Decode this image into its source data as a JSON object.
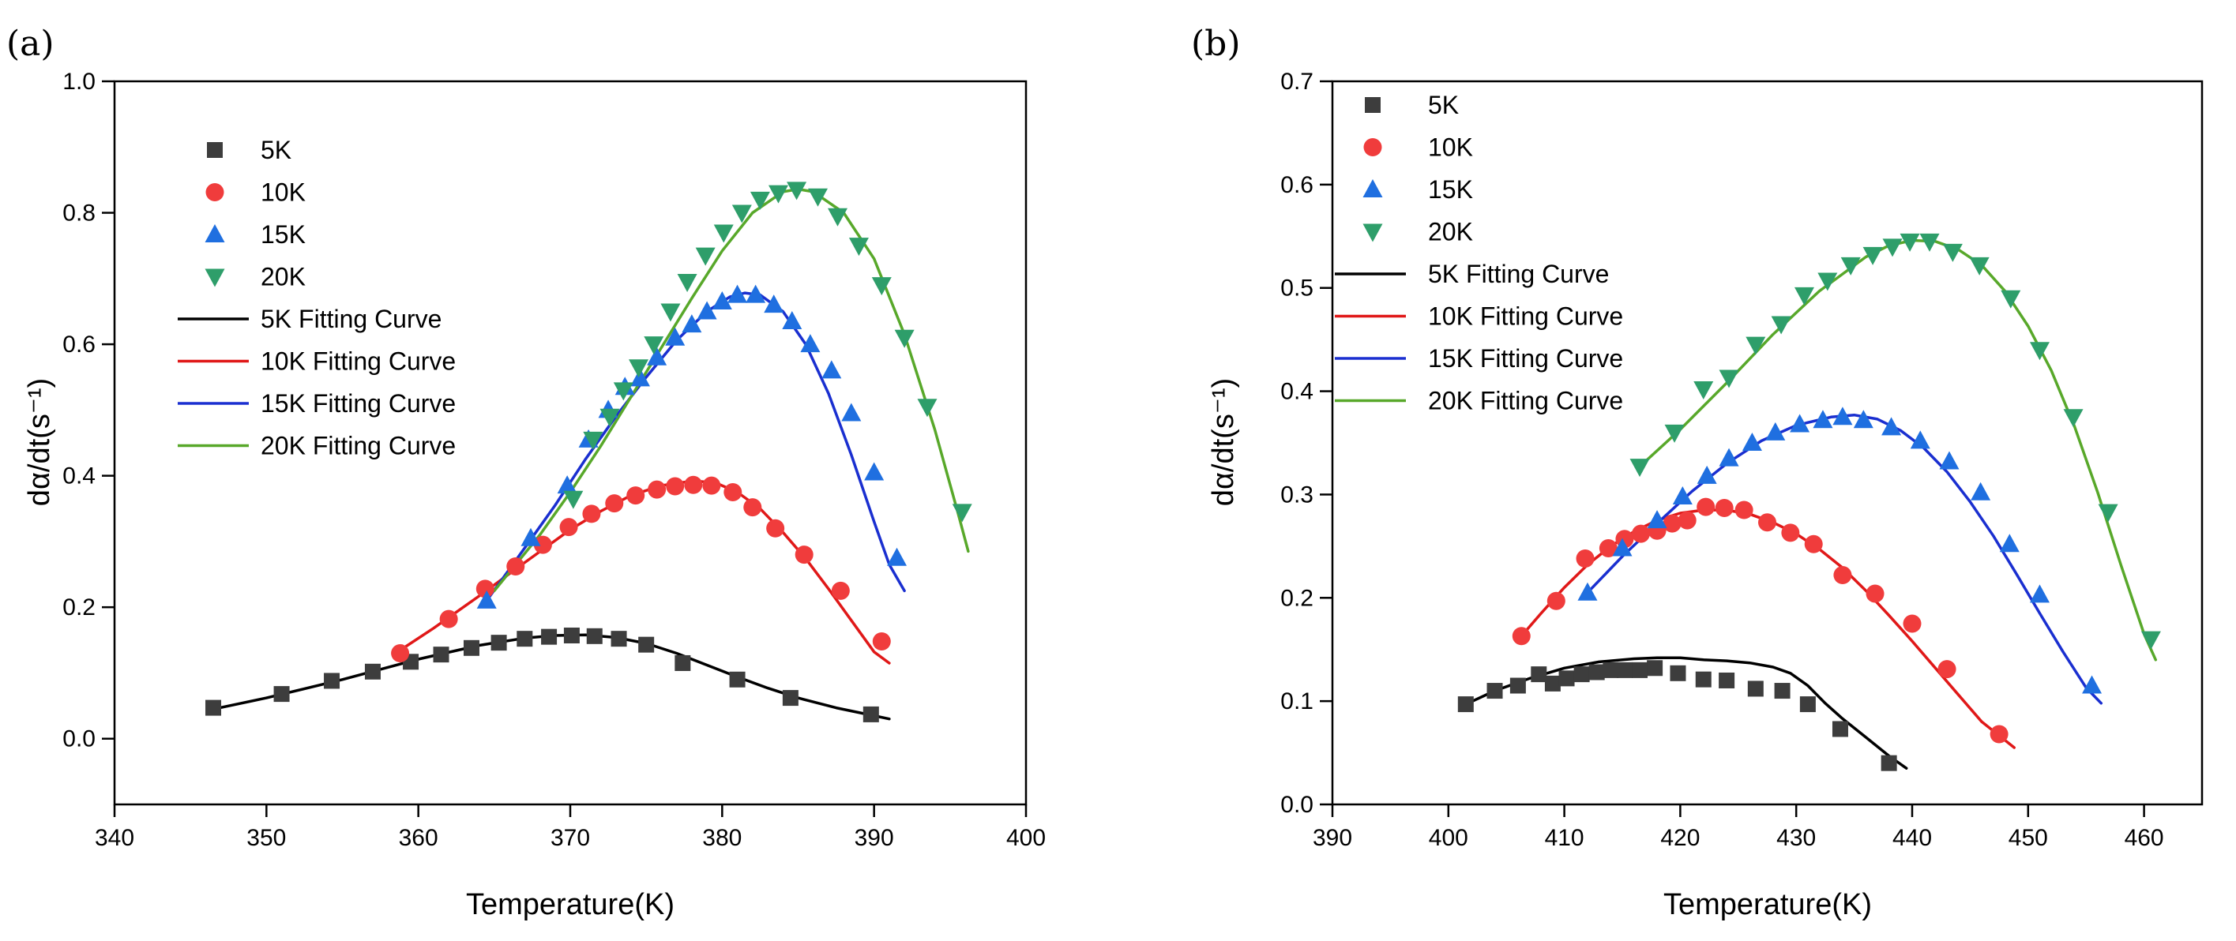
{
  "colors": {
    "5K": "#3d3d3d",
    "10K": "#f03c3c",
    "15K": "#1f6fe0",
    "20K": "#2e9e6a",
    "fit_5K": "#000000",
    "fit_10K": "#e01818",
    "fit_15K": "#1a2fd0",
    "fit_20K": "#58a82a"
  },
  "chart_data": [
    {
      "type": "scatter",
      "panel": "(a)",
      "xlabel": "Temperature(K)",
      "ylabel": "dα/dt(s⁻¹)",
      "xlim": [
        340,
        400
      ],
      "ylim": [
        -0.1,
        1.0
      ],
      "xticks": [
        340,
        350,
        360,
        370,
        380,
        390,
        400
      ],
      "yticks": [
        0.0,
        0.2,
        0.4,
        0.6,
        0.8,
        1.0
      ],
      "xtick_labels": [
        "340",
        "350",
        "360",
        "370",
        "380",
        "390",
        "400"
      ],
      "ytick_labels": [
        "0.0",
        "0.2",
        "0.4",
        "0.6",
        "0.8",
        "1.0"
      ],
      "legend_position": "top-left",
      "series": [
        {
          "name": "5K",
          "marker": "square",
          "color_key": "5K",
          "x": [
            346.5,
            351.0,
            354.3,
            357.0,
            359.5,
            361.5,
            363.5,
            365.3,
            367.0,
            368.6,
            370.1,
            371.6,
            373.2,
            375.0,
            377.4,
            381.0,
            384.5,
            389.8
          ],
          "y": [
            0.047,
            0.068,
            0.088,
            0.102,
            0.117,
            0.128,
            0.138,
            0.146,
            0.152,
            0.155,
            0.157,
            0.156,
            0.152,
            0.143,
            0.115,
            0.09,
            0.062,
            0.037
          ]
        },
        {
          "name": "10K",
          "marker": "circle",
          "color_key": "10K",
          "x": [
            358.8,
            362.0,
            364.4,
            366.4,
            368.2,
            369.9,
            371.4,
            372.9,
            374.3,
            375.7,
            376.9,
            378.1,
            379.3,
            380.7,
            382.0,
            383.5,
            385.4,
            387.8,
            390.5
          ],
          "y": [
            0.13,
            0.182,
            0.228,
            0.262,
            0.295,
            0.322,
            0.342,
            0.358,
            0.37,
            0.379,
            0.384,
            0.386,
            0.385,
            0.375,
            0.352,
            0.32,
            0.28,
            0.225,
            0.148
          ]
        },
        {
          "name": "15K",
          "marker": "triangle-up",
          "color_key": "15K",
          "x": [
            364.5,
            367.4,
            369.8,
            371.2,
            372.5,
            373.6,
            374.6,
            375.7,
            376.9,
            378.0,
            379.0,
            380.0,
            381.0,
            382.2,
            383.4,
            384.6,
            385.8,
            387.2,
            388.5,
            390.0,
            391.5
          ],
          "y": [
            0.21,
            0.305,
            0.385,
            0.455,
            0.5,
            0.535,
            0.548,
            0.58,
            0.61,
            0.63,
            0.65,
            0.665,
            0.675,
            0.675,
            0.66,
            0.635,
            0.6,
            0.56,
            0.495,
            0.405,
            0.275
          ]
        },
        {
          "name": "20K",
          "marker": "triangle-down",
          "color_key": "20K",
          "x": [
            370.2,
            371.5,
            372.6,
            373.5,
            374.5,
            375.5,
            376.6,
            377.7,
            378.9,
            380.1,
            381.3,
            382.5,
            383.7,
            384.9,
            386.3,
            387.6,
            389.0,
            390.5,
            392.0,
            393.5,
            395.8
          ],
          "y": [
            0.365,
            0.455,
            0.49,
            0.53,
            0.565,
            0.6,
            0.65,
            0.695,
            0.735,
            0.77,
            0.8,
            0.82,
            0.83,
            0.835,
            0.825,
            0.795,
            0.75,
            0.69,
            0.61,
            0.505,
            0.345
          ]
        },
        {
          "name": "5K Fitting Curve",
          "marker": "line",
          "color_key": "fit_5K",
          "x": [
            346.5,
            350.0,
            355.0,
            360.0,
            364.0,
            367.0,
            369.0,
            371.0,
            373.0,
            375.0,
            377.0,
            379.0,
            381.0,
            383.0,
            385.0,
            387.5,
            390.0,
            391.0
          ],
          "y": [
            0.045,
            0.062,
            0.09,
            0.121,
            0.142,
            0.153,
            0.157,
            0.158,
            0.154,
            0.145,
            0.13,
            0.112,
            0.094,
            0.077,
            0.062,
            0.047,
            0.035,
            0.03
          ]
        },
        {
          "name": "10K Fitting Curve",
          "marker": "line",
          "color_key": "fit_10K",
          "x": [
            358.5,
            361.0,
            364.0,
            367.0,
            370.0,
            372.0,
            374.0,
            376.0,
            378.0,
            379.5,
            381.0,
            382.5,
            384.0,
            385.5,
            387.0,
            388.5,
            390.0,
            391.0
          ],
          "y": [
            0.13,
            0.168,
            0.217,
            0.268,
            0.318,
            0.346,
            0.37,
            0.385,
            0.392,
            0.39,
            0.375,
            0.35,
            0.314,
            0.274,
            0.228,
            0.18,
            0.132,
            0.115
          ]
        },
        {
          "name": "15K Fitting Curve",
          "marker": "line",
          "color_key": "fit_15K",
          "x": [
            364.5,
            367.0,
            369.0,
            371.0,
            373.0,
            375.0,
            377.0,
            379.0,
            380.5,
            381.5,
            382.5,
            384.0,
            385.5,
            387.0,
            388.5,
            390.0,
            391.0,
            392.0
          ],
          "y": [
            0.21,
            0.29,
            0.355,
            0.425,
            0.49,
            0.55,
            0.606,
            0.65,
            0.672,
            0.678,
            0.675,
            0.65,
            0.6,
            0.525,
            0.432,
            0.33,
            0.265,
            0.225
          ]
        },
        {
          "name": "20K Fitting Curve",
          "marker": "line",
          "color_key": "fit_20K",
          "x": [
            365.0,
            368.0,
            370.0,
            372.0,
            374.0,
            376.0,
            378.0,
            380.0,
            382.0,
            384.0,
            385.0,
            386.0,
            388.0,
            390.0,
            392.0,
            394.0,
            395.5,
            396.2
          ],
          "y": [
            0.225,
            0.31,
            0.375,
            0.445,
            0.52,
            0.595,
            0.67,
            0.742,
            0.8,
            0.832,
            0.836,
            0.832,
            0.8,
            0.73,
            0.615,
            0.47,
            0.345,
            0.285
          ]
        }
      ]
    },
    {
      "type": "scatter",
      "panel": "(b)",
      "xlabel": "Temperature(K)",
      "ylabel": "dα/dt(s⁻¹)",
      "xlim": [
        390,
        465
      ],
      "ylim": [
        0.0,
        0.7
      ],
      "xticks": [
        390,
        400,
        410,
        420,
        430,
        440,
        450,
        460
      ],
      "yticks": [
        0.0,
        0.1,
        0.2,
        0.3,
        0.4,
        0.5,
        0.6,
        0.7
      ],
      "xtick_labels": [
        "390",
        "400",
        "410",
        "420",
        "430",
        "440",
        "450",
        "460"
      ],
      "ytick_labels": [
        "0.0",
        "0.1",
        "0.2",
        "0.3",
        "0.4",
        "0.5",
        "0.6",
        "0.7"
      ],
      "legend_position": "top-left",
      "series": [
        {
          "name": "5K",
          "marker": "square",
          "color_key": "5K",
          "x": [
            401.5,
            404.0,
            406.0,
            407.8,
            409.0,
            410.2,
            411.5,
            412.8,
            414.0,
            415.2,
            416.5,
            417.8,
            419.8,
            422.0,
            424.0,
            426.5,
            428.8,
            431.0,
            433.8,
            438.0
          ],
          "y": [
            0.097,
            0.11,
            0.115,
            0.126,
            0.117,
            0.122,
            0.126,
            0.128,
            0.13,
            0.13,
            0.13,
            0.132,
            0.127,
            0.121,
            0.12,
            0.112,
            0.11,
            0.097,
            0.073,
            0.04
          ]
        },
        {
          "name": "10K",
          "marker": "circle",
          "color_key": "10K",
          "x": [
            406.3,
            409.3,
            411.8,
            413.8,
            415.2,
            416.6,
            418.0,
            419.3,
            420.6,
            422.2,
            423.8,
            425.5,
            427.5,
            429.5,
            431.5,
            434.0,
            436.8,
            440.0,
            443.0,
            447.5
          ],
          "y": [
            0.163,
            0.197,
            0.238,
            0.248,
            0.257,
            0.262,
            0.265,
            0.272,
            0.275,
            0.288,
            0.287,
            0.285,
            0.273,
            0.263,
            0.252,
            0.222,
            0.204,
            0.175,
            0.131,
            0.068
          ]
        },
        {
          "name": "15K",
          "marker": "triangle-up",
          "color_key": "15K",
          "x": [
            412.0,
            415.0,
            418.0,
            420.2,
            422.3,
            424.2,
            426.2,
            428.2,
            430.3,
            432.3,
            434.0,
            435.8,
            438.2,
            440.7,
            443.2,
            445.9,
            448.4,
            451.0,
            455.5
          ],
          "y": [
            0.205,
            0.248,
            0.275,
            0.298,
            0.318,
            0.335,
            0.35,
            0.36,
            0.368,
            0.372,
            0.375,
            0.372,
            0.365,
            0.352,
            0.332,
            0.302,
            0.252,
            0.203,
            0.115
          ]
        },
        {
          "name": "20K",
          "marker": "triangle-down",
          "color_key": "20K",
          "x": [
            416.5,
            419.5,
            422.0,
            424.2,
            426.5,
            428.7,
            430.7,
            432.7,
            434.7,
            436.6,
            438.3,
            439.8,
            441.5,
            443.5,
            445.8,
            448.5,
            451.0,
            453.9,
            456.9,
            460.6
          ],
          "y": [
            0.327,
            0.36,
            0.402,
            0.413,
            0.445,
            0.465,
            0.493,
            0.507,
            0.522,
            0.532,
            0.54,
            0.545,
            0.545,
            0.535,
            0.522,
            0.49,
            0.44,
            0.375,
            0.283,
            0.16
          ]
        },
        {
          "name": "5K Fitting Curve",
          "marker": "line",
          "color_key": "fit_5K",
          "x": [
            401.5,
            404.0,
            407.0,
            410.0,
            413.0,
            416.0,
            418.0,
            420.0,
            422.0,
            424.0,
            426.0,
            428.0,
            429.5,
            431.0,
            432.5,
            434.0,
            436.0,
            438.0,
            439.5
          ],
          "y": [
            0.097,
            0.11,
            0.122,
            0.132,
            0.138,
            0.141,
            0.142,
            0.142,
            0.14,
            0.139,
            0.137,
            0.133,
            0.127,
            0.115,
            0.098,
            0.083,
            0.065,
            0.047,
            0.035
          ]
        },
        {
          "name": "10K Fitting Curve",
          "marker": "line",
          "color_key": "fit_10K",
          "x": [
            406.3,
            408.0,
            410.0,
            412.0,
            414.0,
            416.0,
            418.0,
            420.0,
            422.0,
            424.0,
            426.0,
            428.0,
            430.0,
            432.0,
            434.0,
            436.0,
            438.0,
            440.0,
            442.0,
            444.0,
            446.0,
            448.8
          ],
          "y": [
            0.163,
            0.185,
            0.21,
            0.232,
            0.25,
            0.264,
            0.275,
            0.282,
            0.285,
            0.285,
            0.281,
            0.273,
            0.262,
            0.247,
            0.229,
            0.207,
            0.183,
            0.158,
            0.132,
            0.106,
            0.08,
            0.055
          ]
        },
        {
          "name": "15K Fitting Curve",
          "marker": "line",
          "color_key": "fit_15K",
          "x": [
            412.0,
            415.0,
            418.0,
            421.0,
            424.0,
            427.0,
            430.0,
            433.0,
            435.0,
            437.0,
            439.0,
            441.0,
            443.0,
            445.0,
            447.0,
            449.0,
            451.0,
            453.0,
            455.0,
            456.3
          ],
          "y": [
            0.205,
            0.24,
            0.272,
            0.303,
            0.33,
            0.352,
            0.367,
            0.375,
            0.377,
            0.373,
            0.362,
            0.345,
            0.322,
            0.293,
            0.26,
            0.223,
            0.185,
            0.148,
            0.113,
            0.098
          ]
        },
        {
          "name": "20K Fitting Curve",
          "marker": "line",
          "color_key": "fit_20K",
          "x": [
            416.5,
            420.0,
            424.0,
            428.0,
            432.0,
            436.0,
            438.0,
            440.0,
            442.0,
            444.0,
            446.0,
            448.0,
            450.0,
            452.0,
            454.0,
            456.0,
            458.0,
            460.0,
            461.0
          ],
          "y": [
            0.327,
            0.363,
            0.408,
            0.455,
            0.497,
            0.53,
            0.541,
            0.546,
            0.545,
            0.537,
            0.522,
            0.497,
            0.463,
            0.42,
            0.366,
            0.302,
            0.232,
            0.165,
            0.14
          ]
        }
      ]
    }
  ]
}
